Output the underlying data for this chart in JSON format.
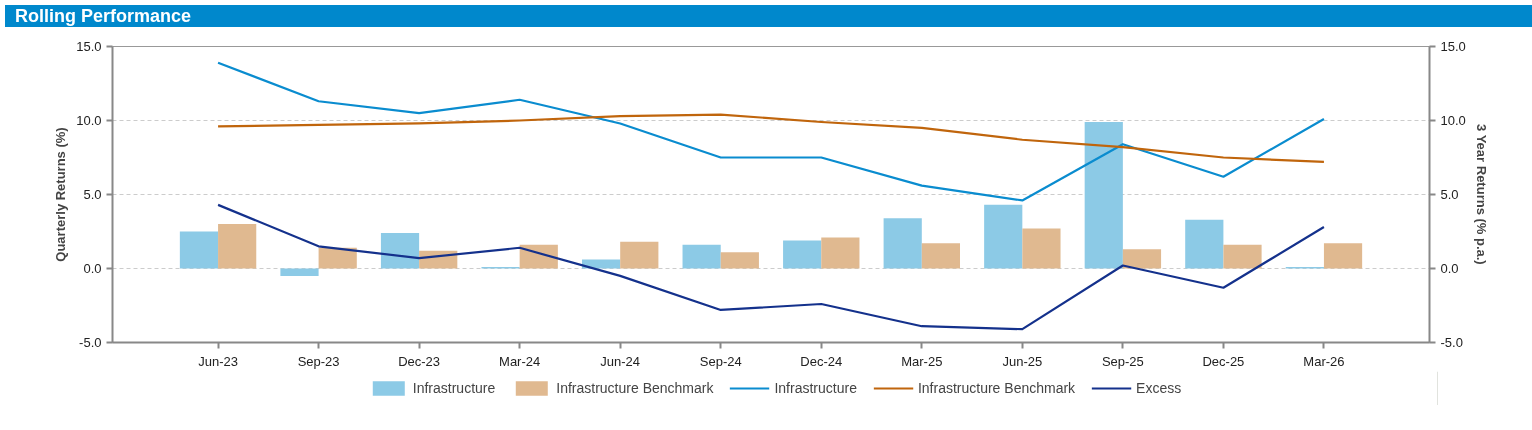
{
  "chart_data": {
    "type": "bar",
    "title": "Rolling Performance",
    "ylabel": "Quarterly Returns (%)",
    "y2label": "3 Year Returns (% p.a.)",
    "categories": [
      "Jun-23",
      "Sep-23",
      "Dec-23",
      "Mar-24",
      "Jun-24",
      "Sep-24",
      "Dec-24",
      "Mar-25",
      "Jun-25",
      "Sep-25",
      "Dec-25",
      "Mar-26"
    ],
    "series": [
      {
        "name": "Infrastructure",
        "color": "#8ccae6",
        "values": [
          2.5,
          -0.5,
          2.4,
          0.1,
          0.6,
          1.6,
          1.9,
          3.4,
          4.3,
          9.9,
          3.3,
          0.1
        ]
      },
      {
        "name": "Infrastructure Benchmark",
        "color": "#e0b990",
        "values": [
          3.0,
          1.4,
          1.2,
          1.6,
          1.8,
          1.1,
          2.1,
          1.7,
          2.7,
          1.3,
          1.6,
          1.7
        ]
      },
      {
        "name": "Infrastructure",
        "type": "line",
        "color": "#0a8ccf",
        "values": [
          13.9,
          11.3,
          10.5,
          11.4,
          9.8,
          7.5,
          7.5,
          5.6,
          4.6,
          8.4,
          6.2,
          10.1
        ]
      },
      {
        "name": "Infrastructure Benchmark",
        "type": "line",
        "color": "#c0650c",
        "values": [
          9.6,
          9.7,
          9.8,
          10.0,
          10.3,
          10.4,
          9.9,
          9.5,
          8.7,
          8.2,
          7.5,
          7.2
        ]
      },
      {
        "name": "Excess",
        "type": "line",
        "color": "#14318c",
        "values": [
          4.3,
          1.5,
          0.7,
          1.4,
          -0.5,
          -2.8,
          -2.4,
          -3.9,
          -4.1,
          0.2,
          -1.3,
          2.8
        ]
      }
    ],
    "ylim": [
      -5,
      15
    ],
    "yticks": [
      {
        "value": -5,
        "label": "-5.0"
      },
      {
        "value": 0,
        "label": "0.0"
      },
      {
        "value": 5,
        "label": "5.0"
      },
      {
        "value": 10,
        "label": "10.0"
      },
      {
        "value": 15,
        "label": "15.0"
      }
    ],
    "y2lim": [
      -5,
      15
    ],
    "y2ticks": [
      {
        "value": -5,
        "label": "-5.0"
      },
      {
        "value": 0,
        "label": "0.0"
      },
      {
        "value": 5,
        "label": "5.0"
      },
      {
        "value": 10,
        "label": "10.0"
      },
      {
        "value": 15,
        "label": "15.0"
      }
    ],
    "grid": "y",
    "legend": "bottom",
    "line_style": "solid",
    "marker": "none"
  }
}
